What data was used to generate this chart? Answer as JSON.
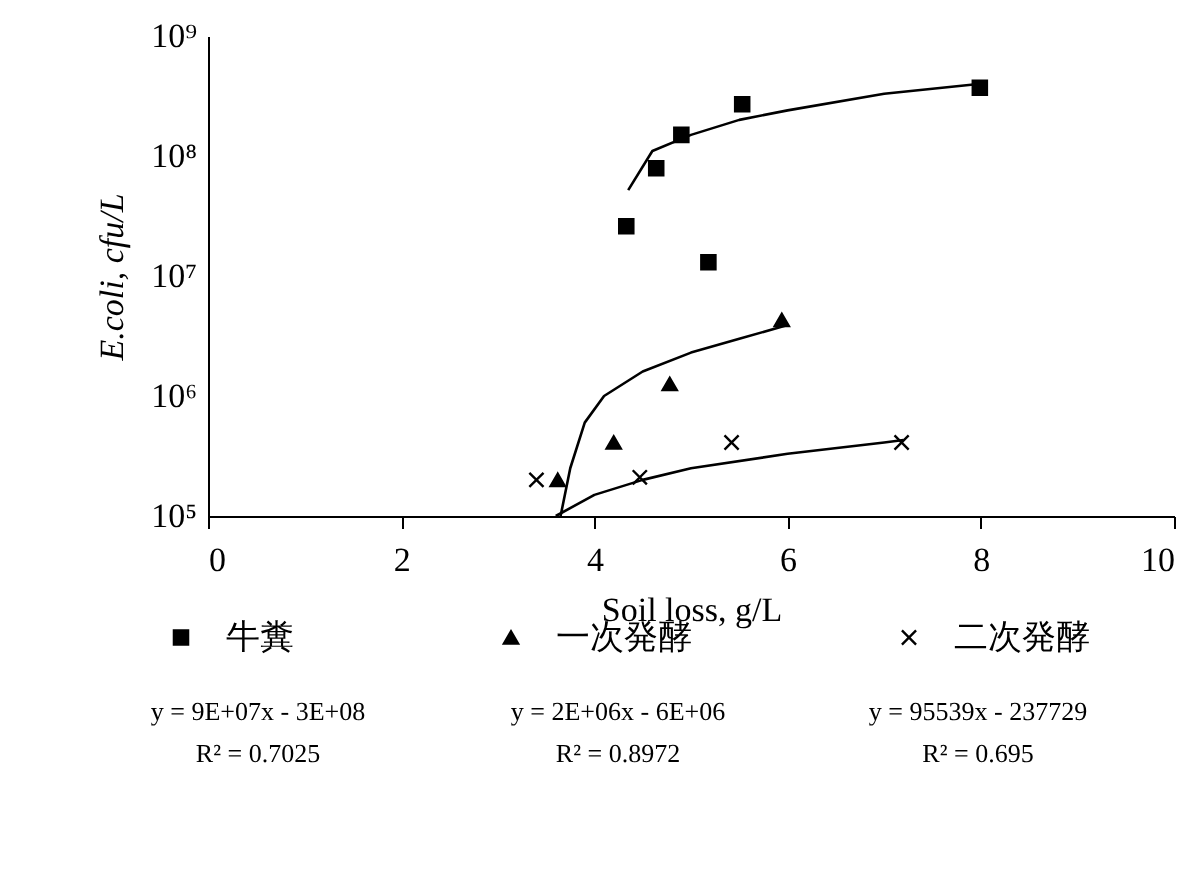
{
  "chart_data": {
    "type": "scatter",
    "xlabel": "Soil loss, g/L",
    "ylabel": "E.coli, cfu/L",
    "log": "y",
    "xlim": [
      0,
      10
    ],
    "xticks": [
      0,
      2,
      4,
      6,
      8,
      10
    ],
    "ylim": [
      100000,
      1000000000
    ],
    "yticks": [
      {
        "value": 100000,
        "label": "10⁵"
      },
      {
        "value": 1000000,
        "label": "10⁶"
      },
      {
        "value": 10000000,
        "label": "10⁷"
      },
      {
        "value": 100000000,
        "label": "10⁸"
      },
      {
        "value": 1000000000,
        "label": "10⁹"
      }
    ],
    "legend": "bottom",
    "series": [
      {
        "name": "牛糞",
        "color": "#000000",
        "marker": "square",
        "x": [
          4.33,
          4.64,
          4.9,
          5.18,
          5.53,
          7.99
        ],
        "values": [
          26000000,
          79000000,
          150000000,
          13000000,
          270000000,
          370000000
        ]
      },
      {
        "name": "一次発酵",
        "color": "#000000",
        "marker": "triangle",
        "x": [
          3.62,
          4.2,
          4.78,
          5.94
        ],
        "values": [
          200000,
          410000,
          1260000,
          4300000
        ]
      },
      {
        "name": "二次発酵",
        "color": "#000000",
        "marker": "cross",
        "x": [
          3.4,
          4.47,
          5.42,
          7.18
        ],
        "values": [
          200000,
          210000,
          410000,
          410000
        ]
      },
      {
        "type": "line",
        "color": "#000000",
        "x": [
          4.35,
          4.6,
          5,
          5.5,
          6,
          7,
          8
        ],
        "values": [
          52000000,
          110000000,
          150000000,
          200000000,
          240000000,
          330000000,
          400000000
        ]
      },
      {
        "type": "line",
        "color": "#000000",
        "x": [
          3.65,
          3.75,
          3.9,
          4.1,
          4.5,
          5,
          5.5,
          6
        ],
        "values": [
          100000,
          250000,
          600000,
          1000000,
          1600000,
          2300000,
          3000000,
          3900000
        ]
      },
      {
        "type": "line",
        "color": "#000000",
        "x": [
          3.6,
          4,
          4.5,
          5,
          6,
          7,
          7.2
        ],
        "values": [
          100000,
          150000,
          200000,
          250000,
          330000,
          410000,
          430000
        ]
      }
    ],
    "annotations": [
      "y = 9E+07x - 3E+08",
      "y = 2E+06x - 6E+06",
      "y = 95539x - 237729",
      "R² = 0.7025",
      "R² = 0.8972",
      "R² = 0.695"
    ]
  }
}
